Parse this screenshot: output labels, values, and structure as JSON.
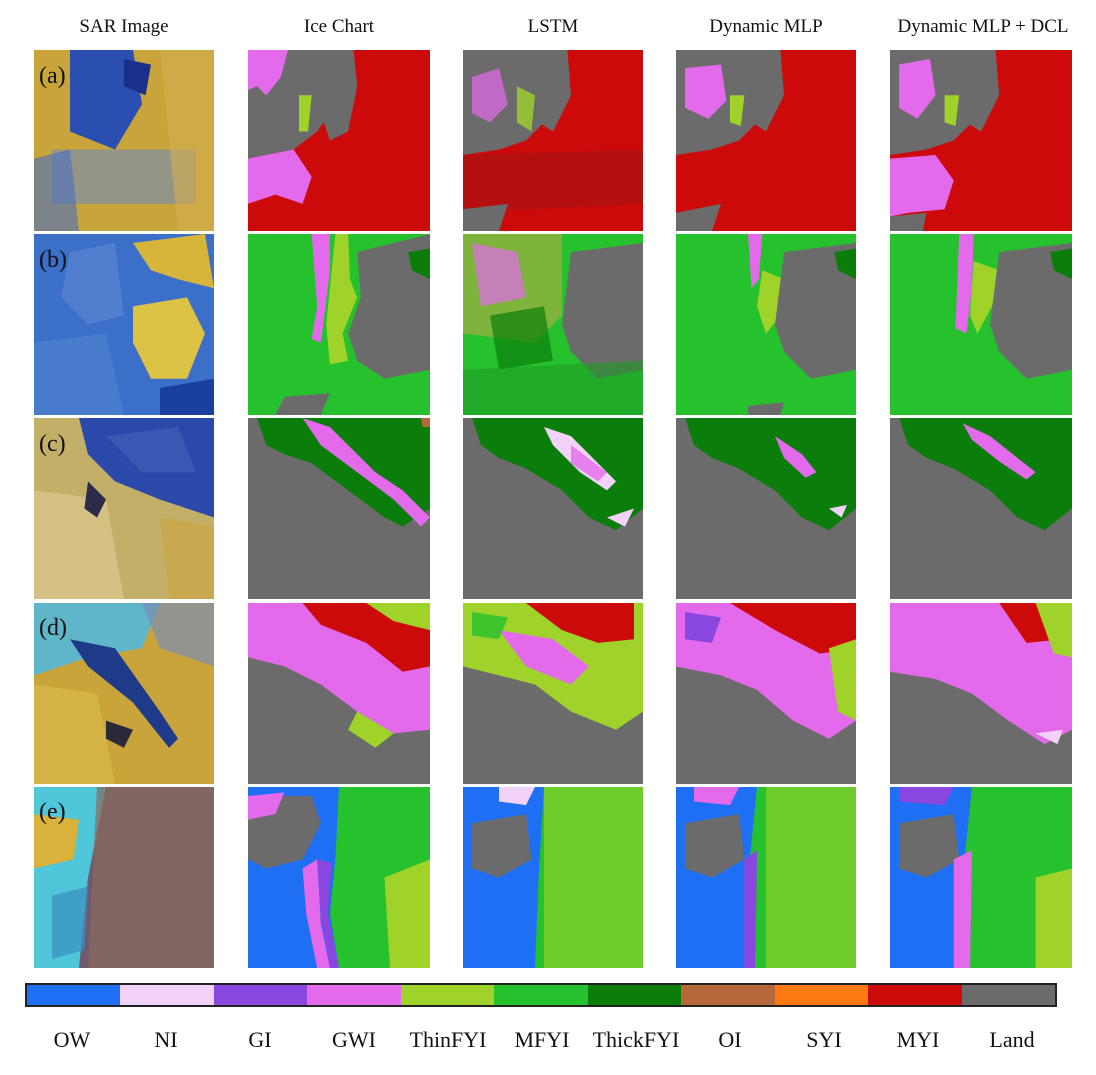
{
  "columns": [
    "SAR Image",
    "Ice Chart",
    "LSTM",
    "Dynamic MLP",
    "Dynamic MLP + DCL"
  ],
  "rows": [
    "(a)",
    "(b)",
    "(c)",
    "(d)",
    "(e)"
  ],
  "legend": [
    {
      "label": "OW",
      "color": "#1f6ff5"
    },
    {
      "label": "NI",
      "color": "#f2d2f8"
    },
    {
      "label": "GI",
      "color": "#8a47e0"
    },
    {
      "label": "GWI",
      "color": "#e36aeb"
    },
    {
      "label": "ThinFYI",
      "color": "#9fd32a"
    },
    {
      "label": "MFYI",
      "color": "#26c22e"
    },
    {
      "label": "ThickFYI",
      "color": "#0b7d0b"
    },
    {
      "label": "OI",
      "color": "#b5683b"
    },
    {
      "label": "SYI",
      "color": "#ff7a10"
    },
    {
      "label": "MYI",
      "color": "#cc0a0a"
    },
    {
      "label": "Land",
      "color": "#6b6b6b"
    }
  ]
}
